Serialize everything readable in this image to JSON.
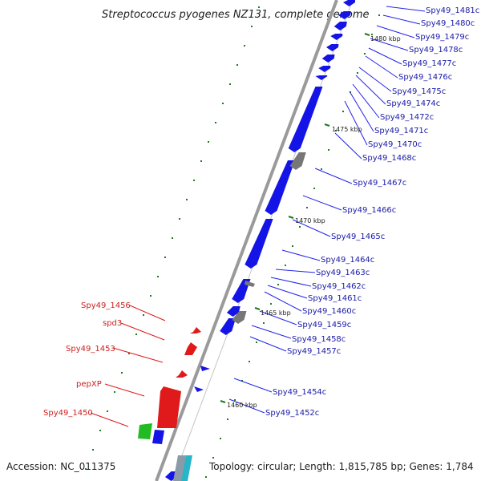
{
  "title": "Streptococcus pyogenes NZ131, complete genome",
  "accession": "Accession: NC_011375",
  "summary": "Topology: circular; Length: 1,815,785 bp; Genes: 1,784",
  "colors": {
    "blue": "#1414e6",
    "red": "#e01a1a",
    "green": "#22bb22",
    "grey": "#777777",
    "backbone": "#999999",
    "tick": "#1f7a1f",
    "label_blue": "#1a1aa8",
    "label_red": "#cc1f1f"
  },
  "scale_ticks": [
    "1480 kbp",
    "1475 kbp",
    "1470 kbp",
    "1465 kbp",
    "1460 kbp"
  ],
  "right_genes": [
    "Spy49_1481c",
    "Spy49_1480c",
    "Spy49_1479c",
    "Spy49_1478c",
    "Spy49_1477c",
    "Spy49_1476c",
    "Spy49_1475c",
    "Spy49_1474c",
    "Spy49_1472c",
    "Spy49_1471c",
    "Spy49_1470c",
    "Spy49_1468c",
    "Spy49_1467c",
    "Spy49_1466c",
    "Spy49_1465c",
    "Spy49_1464c",
    "Spy49_1463c",
    "Spy49_1462c",
    "Spy49_1461c",
    "Spy49_1460c",
    "Spy49_1459c",
    "Spy49_1458c",
    "Spy49_1457c",
    "Spy49_1454c",
    "Spy49_1452c"
  ],
  "left_genes": [
    "Spy49_1456",
    "spd3",
    "Spy49_1453",
    "pepXP",
    "Spy49_1450"
  ]
}
